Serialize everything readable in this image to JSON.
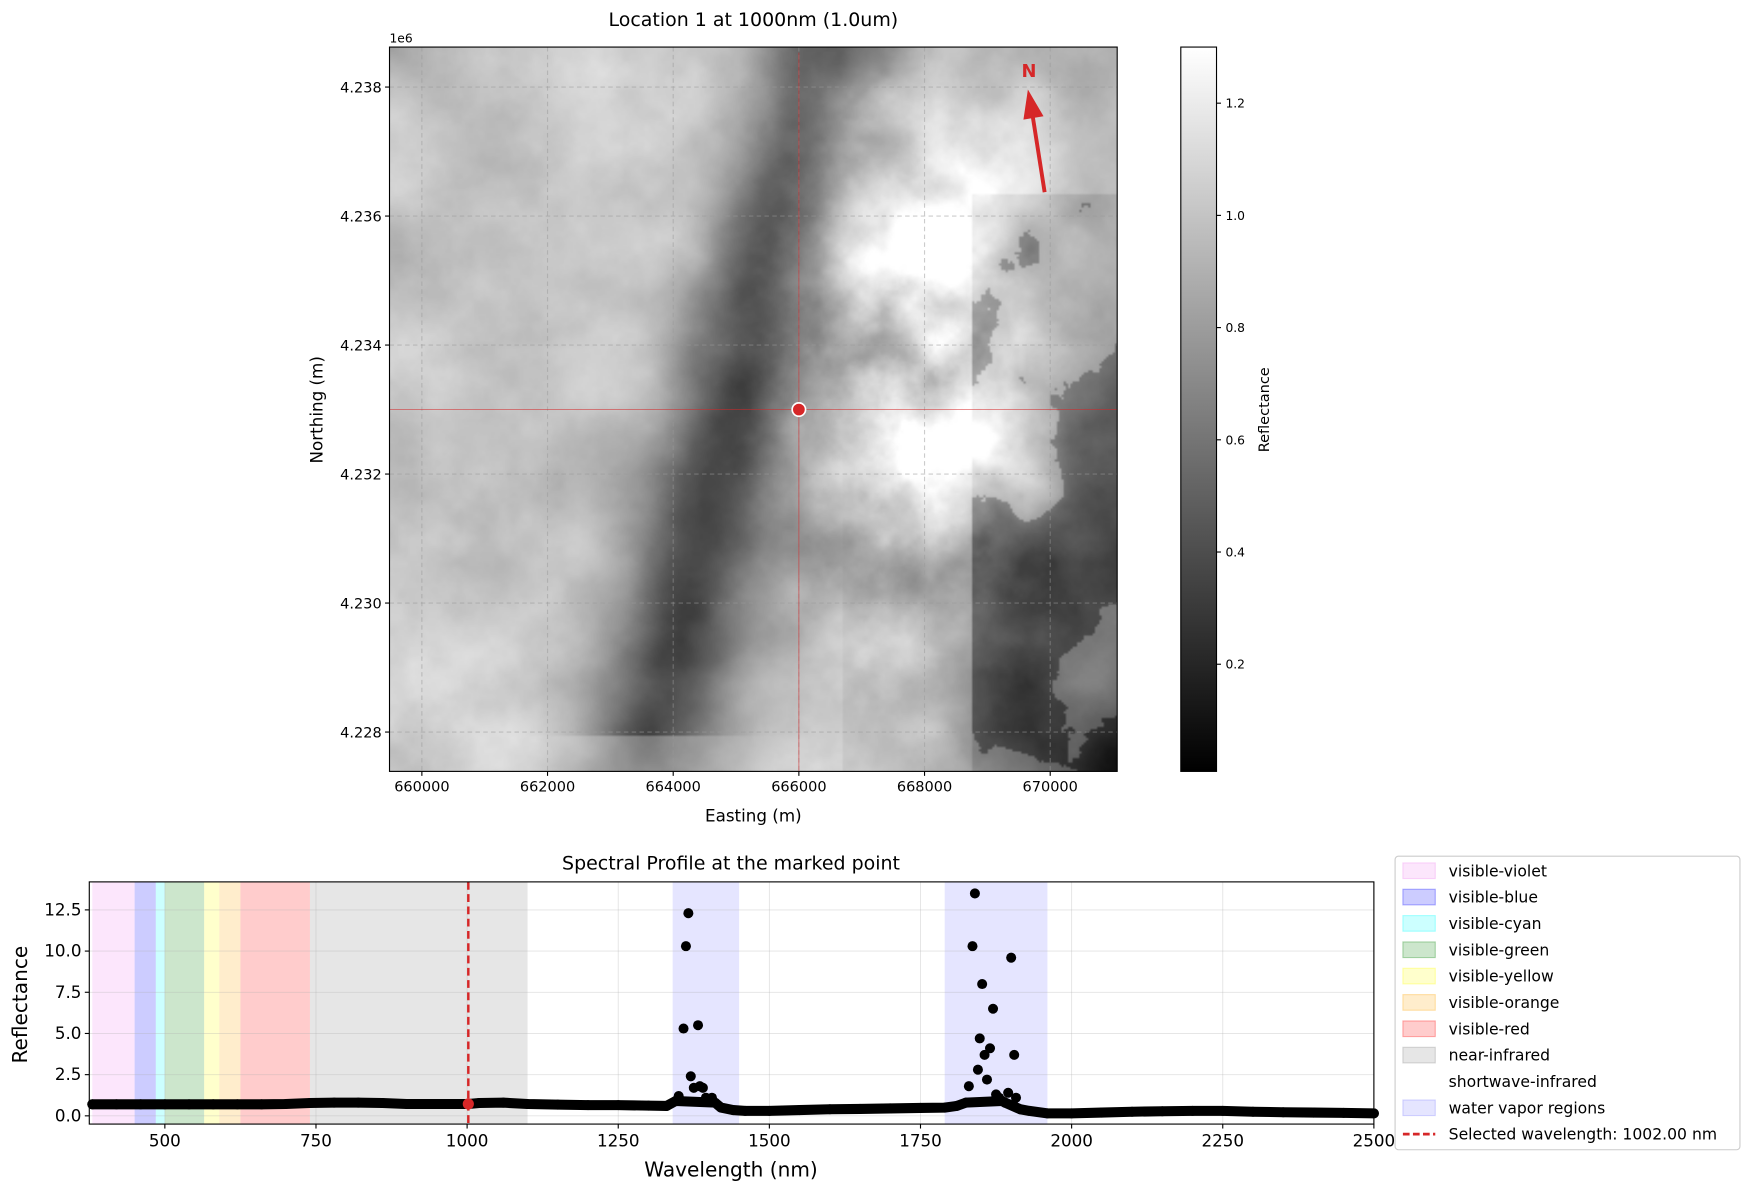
{
  "chart_data": [
    {
      "type": "heatmap",
      "title": "Location 1 at 1000nm (1.0um)",
      "xlabel": "Easting (m)",
      "ylabel": "Northing (m)",
      "y_offset_label": "1e6",
      "xlim": [
        659485,
        671066
      ],
      "ylim": [
        4.22739,
        4.23862
      ],
      "xticks": [
        660000,
        662000,
        664000,
        666000,
        668000,
        670000
      ],
      "xtick_labels": [
        "660000",
        "662000",
        "664000",
        "666000",
        "668000",
        "670000"
      ],
      "yticks": [
        4.228,
        4.23,
        4.232,
        4.234,
        4.236,
        4.238
      ],
      "ytick_labels": [
        "4.228",
        "4.230",
        "4.232",
        "4.234",
        "4.236",
        "4.238"
      ],
      "grid": true,
      "colormap": "gray",
      "marked_point": {
        "easting": 666000,
        "northing": 4.233,
        "color": "#d62728"
      },
      "north_arrow": {
        "label": "N",
        "color": "#d62728"
      },
      "colorbar": {
        "label": "Reflectance",
        "range": [
          0.009,
          1.3
        ],
        "ticks": [
          0.2,
          0.4,
          0.6,
          0.8,
          1.0,
          1.2
        ],
        "tick_labels": [
          "0.2",
          "0.4",
          "0.6",
          "0.8",
          "1.0",
          "1.2"
        ]
      }
    },
    {
      "type": "scatter",
      "title": "Spectral Profile at the marked point",
      "xlabel": "Wavelength (nm)",
      "ylabel": "Reflectance",
      "xlim": [
        375,
        2500
      ],
      "ylim": [
        -0.5,
        14.2
      ],
      "xticks": [
        500,
        750,
        1000,
        1250,
        1500,
        1750,
        2000,
        2250,
        2500
      ],
      "xtick_labels": [
        "500",
        "750",
        "1000",
        "1250",
        "1500",
        "1750",
        "2000",
        "2250",
        "2500"
      ],
      "yticks": [
        0,
        2.5,
        5,
        7.5,
        10,
        12.5
      ],
      "ytick_labels": [
        "0.0",
        "2.5",
        "5.0",
        "7.5",
        "10.0",
        "12.5"
      ],
      "grid": true,
      "legend_placement": "outside-right",
      "x": [
        380,
        420,
        460,
        500,
        540,
        580,
        620,
        660,
        700,
        740,
        780,
        820,
        860,
        900,
        940,
        980,
        1002,
        1020,
        1060,
        1100,
        1150,
        1200,
        1250,
        1300,
        1330,
        1345,
        1350,
        1358,
        1362,
        1366,
        1370,
        1375,
        1382,
        1385,
        1390,
        1395,
        1405,
        1410,
        1420,
        1440,
        1460,
        1500,
        1550,
        1600,
        1650,
        1700,
        1750,
        1790,
        1810,
        1825,
        1830,
        1836,
        1840,
        1845,
        1848,
        1852,
        1856,
        1860,
        1865,
        1870,
        1875,
        1880,
        1885,
        1890,
        1895,
        1900,
        1905,
        1908,
        1915,
        1930,
        1960,
        2000,
        2050,
        2100,
        2150,
        2200,
        2250,
        2300,
        2350,
        2400,
        2450,
        2500
      ],
      "y": [
        0.7,
        0.7,
        0.7,
        0.7,
        0.7,
        0.7,
        0.7,
        0.7,
        0.72,
        0.78,
        0.8,
        0.8,
        0.78,
        0.72,
        0.72,
        0.72,
        0.72,
        0.78,
        0.8,
        0.72,
        0.68,
        0.65,
        0.65,
        0.62,
        0.6,
        0.9,
        1.2,
        5.3,
        10.3,
        12.3,
        2.4,
        1.7,
        5.5,
        1.8,
        1.7,
        1.1,
        1.1,
        0.8,
        0.5,
        0.35,
        0.3,
        0.3,
        0.35,
        0.4,
        0.42,
        0.45,
        0.48,
        0.5,
        0.6,
        0.8,
        1.8,
        10.3,
        13.5,
        2.8,
        4.7,
        8.0,
        3.7,
        2.2,
        4.1,
        6.5,
        1.3,
        1.1,
        0.9,
        0.8,
        1.4,
        9.6,
        3.7,
        1.1,
        0.4,
        0.3,
        0.15,
        0.15,
        0.2,
        0.25,
        0.28,
        0.3,
        0.3,
        0.25,
        0.22,
        0.2,
        0.18,
        0.15
      ],
      "selected_point": {
        "x": 1002,
        "y": 0.72,
        "color": "#d62728"
      },
      "bands": [
        {
          "name": "visible-violet",
          "range": [
            380,
            450
          ],
          "color": "#ee82ee",
          "alpha": 0.2
        },
        {
          "name": "visible-blue",
          "range": [
            450,
            485
          ],
          "color": "#0000ff",
          "alpha": 0.2
        },
        {
          "name": "visible-cyan",
          "range": [
            485,
            500
          ],
          "color": "#00ffff",
          "alpha": 0.2
        },
        {
          "name": "visible-green",
          "range": [
            500,
            565
          ],
          "color": "#008000",
          "alpha": 0.2
        },
        {
          "name": "visible-yellow",
          "range": [
            565,
            590
          ],
          "color": "#ffff00",
          "alpha": 0.2
        },
        {
          "name": "visible-orange",
          "range": [
            590,
            625
          ],
          "color": "#ffa500",
          "alpha": 0.2
        },
        {
          "name": "visible-red",
          "range": [
            625,
            740
          ],
          "color": "#ff0000",
          "alpha": 0.2
        },
        {
          "name": "near-infrared",
          "range": [
            740,
            1100
          ],
          "color": "#808080",
          "alpha": 0.2
        },
        {
          "name": "shortwave-infrared",
          "range": [
            1100,
            2500
          ],
          "color": "#ffffff",
          "alpha": 0.2
        },
        {
          "name": "water vapor regions",
          "ranges": [
            [
              1340,
              1450
            ],
            [
              1790,
              1960
            ]
          ],
          "color": "#0000ff",
          "alpha": 0.1
        }
      ],
      "selected_wavelength": {
        "value": 1002,
        "label": "Selected wavelength: 1002.00 nm",
        "color": "#d62728"
      }
    }
  ]
}
